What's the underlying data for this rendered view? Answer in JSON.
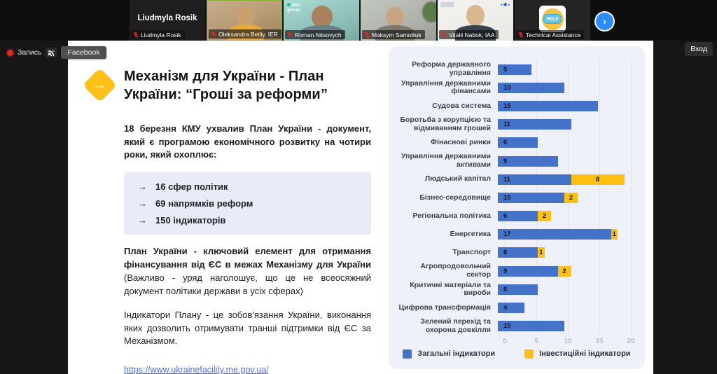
{
  "meeting": {
    "recording_label": "Запись",
    "stream_label": "Facebook",
    "login_button": "Вход",
    "participants": [
      {
        "label": "Liudmyla Rosik",
        "big_name": "Liudmyla Rosik"
      },
      {
        "label": "Oleksandra Betliy, IER"
      },
      {
        "label": "Roman.Nitsovych",
        "logo": "dixi group"
      },
      {
        "label": "Maksym Samoiliuk"
      },
      {
        "label": "Vitalii Nabok, IAA"
      },
      {
        "label": "Technical Assistance",
        "badge": "HELP"
      }
    ]
  },
  "slide": {
    "title": "Механізм для України - План України: “Гроші за реформи”",
    "paragraph1": "18 березня КМУ ухвалив План України - документ, який є програмою економічного розвитку на чотири роки, який охоплює:",
    "bullets": [
      "16 сфер політик",
      "69 напрямків реформ",
      "150 індикаторів"
    ],
    "bullet_arrow": "→",
    "paragraph2_bold": "План України - ключовий елемент для отримання фінансування від ЄС в межах Механізму для України",
    "paragraph2_rest": " (Важливо - уряд наголошує, що це не всеосяжний документ політики держави в усіх сферах)",
    "paragraph3": "Індикатори Плану - це зобов'язання України, виконання яких дозволить отримувати транші підтримки від ЄС за Механізмом.",
    "link": "https://www.ukrainefacility.me.gov.ua/",
    "accent_color": "#FFC019"
  },
  "chart_data": {
    "type": "bar",
    "orientation": "horizontal",
    "categories": [
      "Реформа державного управління",
      "Управління державними фінансами",
      "Судова система",
      "Боротьба з корупцією та відмиванням грошей",
      "Фінаснові ринки",
      "Управління державними активами",
      "Людський капітал",
      "Бізнес-середовище",
      "Регіональна політика",
      "Енергетика",
      "Транспорт",
      "Агропродовольчий сектор",
      "Критичні матеріали та вироби",
      "Цифрова трансформація",
      "Зелений перехід та охорона довкілля"
    ],
    "series": [
      {
        "name": "Загальні індикатори",
        "color": "#4472C8",
        "values": [
          5,
          10,
          15,
          11,
          6,
          9,
          11,
          10,
          6,
          17,
          6,
          9,
          6,
          4,
          10
        ]
      },
      {
        "name": "Інвестиційні індикатори",
        "color": "#FFC013",
        "values": [
          0,
          0,
          0,
          0,
          0,
          0,
          8,
          2,
          2,
          1,
          1,
          2,
          0,
          0,
          0
        ]
      }
    ],
    "xlim": [
      0,
      20
    ],
    "xticks": [
      0,
      5,
      10,
      15,
      20
    ],
    "grid": "vertical",
    "legend_position": "bottom"
  }
}
